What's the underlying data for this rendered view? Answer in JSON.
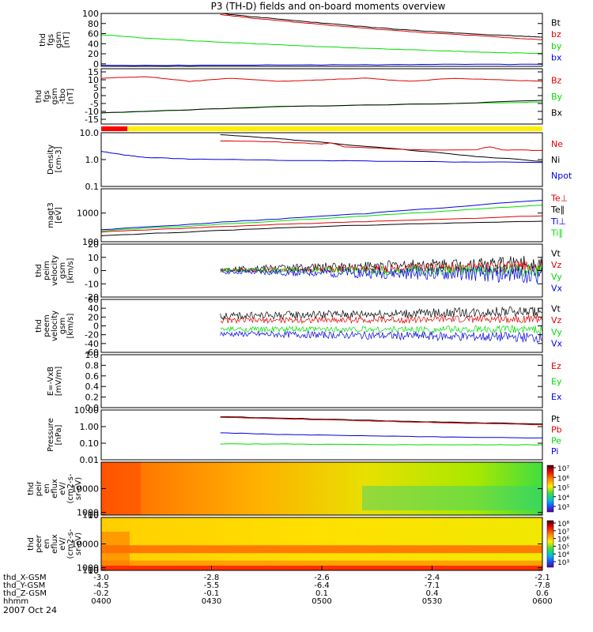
{
  "title": "P3 (TH-D) fields and on-board moments overview",
  "date_label": "2007 Oct 24",
  "colors": {
    "black": "#000000",
    "red": "#e00000",
    "green": "#00dd00",
    "blue": "#0000e0",
    "bar_red": "#ff0000",
    "bar_yellow": "#ffee00"
  },
  "chart_data": [
    {
      "type": "line",
      "id": "fgs",
      "ylabel": [
        "thd",
        "fgs",
        "gsm",
        "[nT]"
      ],
      "ylim": [
        -5,
        100
      ],
      "yticks": [
        100,
        80,
        60,
        40,
        20,
        0
      ],
      "legend": [
        {
          "label": "Bt",
          "color": "black"
        },
        {
          "label": "bz",
          "color": "red"
        },
        {
          "label": "by",
          "color": "green"
        },
        {
          "label": "bx",
          "color": "blue"
        }
      ],
      "series": [
        {
          "name": "Bt",
          "color": "black",
          "x": [
            0.27,
            0.35,
            0.45,
            0.55,
            0.65,
            0.75,
            0.85,
            0.95,
            1.0
          ],
          "y": [
            100,
            93,
            85,
            77,
            70,
            64,
            59,
            55,
            53
          ]
        },
        {
          "name": "bz",
          "color": "red",
          "x": [
            0.27,
            0.35,
            0.45,
            0.55,
            0.65,
            0.75,
            0.85,
            0.95,
            1.0
          ],
          "y": [
            98,
            90,
            82,
            74,
            67,
            61,
            56,
            50,
            48
          ]
        },
        {
          "name": "by",
          "color": "green",
          "x": [
            0,
            0.1,
            0.2,
            0.3,
            0.4,
            0.5,
            0.6,
            0.7,
            0.8,
            0.9,
            1.0
          ],
          "y": [
            58,
            51,
            46,
            42,
            38,
            34,
            31,
            28,
            25,
            22,
            21
          ]
        },
        {
          "name": "bx",
          "color": "blue",
          "x": [
            0,
            0.2,
            0.4,
            0.6,
            0.8,
            1.0
          ],
          "y": [
            -3,
            -3,
            -2,
            -2,
            -1,
            -1
          ]
        }
      ]
    },
    {
      "type": "line",
      "id": "fgs_dsl",
      "ylabel": [
        "thd",
        "fgs",
        "gsm",
        "-tbo",
        "[nT]"
      ],
      "ylim": [
        -18,
        17
      ],
      "yticks": [
        15,
        10,
        5,
        0,
        -5,
        -10,
        -15
      ],
      "legend": [
        {
          "label": "Bz",
          "color": "red"
        },
        {
          "label": "By",
          "color": "green"
        },
        {
          "label": "Bx",
          "color": "black"
        }
      ],
      "series": [
        {
          "name": "Bz",
          "color": "red",
          "x": [
            0,
            0.1,
            0.2,
            0.3,
            0.4,
            0.5,
            0.6,
            0.7,
            0.8,
            0.9,
            1.0
          ],
          "y": [
            11,
            12,
            9,
            11,
            9,
            10,
            11,
            9,
            11,
            10,
            9
          ]
        },
        {
          "name": "By",
          "color": "green",
          "x": [
            0,
            0.2,
            0.4,
            0.6,
            0.8,
            1.0
          ],
          "y": [
            -11,
            -9,
            -7,
            -6,
            -5,
            -4
          ]
        },
        {
          "name": "Bx",
          "color": "black",
          "x": [
            0,
            0.2,
            0.4,
            0.6,
            0.8,
            1.0
          ],
          "y": [
            -11,
            -9,
            -7,
            -6,
            -5,
            -3
          ]
        }
      ]
    },
    {
      "type": "line",
      "id": "density",
      "log": true,
      "ylabel": [
        "Density",
        "[cm-3]"
      ],
      "ylim": [
        0.1,
        10
      ],
      "yticks": [
        {
          "v": 10,
          "label": "10.0"
        },
        {
          "v": 1,
          "label": "1.0"
        },
        {
          "v": 0.1,
          "label": "0.1"
        }
      ],
      "legend": [
        {
          "label": "Ne",
          "color": "red"
        },
        {
          "label": "Ni",
          "color": "black"
        },
        {
          "label": "Npot",
          "color": "blue"
        }
      ],
      "series": [
        {
          "name": "Ni",
          "color": "black",
          "x": [
            0.27,
            0.4,
            0.55,
            0.7,
            0.85,
            1.0
          ],
          "y": [
            8.5,
            6,
            3.6,
            2.2,
            1.3,
            0.85
          ]
        },
        {
          "name": "Ne",
          "color": "red",
          "x": [
            0.27,
            0.4,
            0.5,
            0.52,
            0.55,
            0.7,
            0.85,
            0.88,
            0.91,
            1.0
          ],
          "y": [
            5,
            4.5,
            3.8,
            4.2,
            3,
            2.3,
            2.3,
            3,
            2.3,
            2.2
          ]
        },
        {
          "name": "Npot",
          "color": "blue",
          "x": [
            0,
            0.05,
            0.1,
            0.2,
            0.4,
            0.6,
            0.8,
            1.0
          ],
          "y": [
            2.0,
            1.5,
            1.2,
            1.05,
            0.95,
            0.88,
            0.82,
            0.78
          ]
        }
      ]
    },
    {
      "type": "line",
      "id": "temp",
      "log": true,
      "ylabel": [
        "magt3",
        "[eV]"
      ],
      "ylim": [
        100,
        7000
      ],
      "yticks": [
        {
          "v": 1000,
          "label": "1000"
        },
        {
          "v": 100,
          "label": "100"
        }
      ],
      "legend": [
        {
          "label": "Te⊥",
          "color": "red"
        },
        {
          "label": "Te∥",
          "color": "black"
        },
        {
          "label": "Ti⊥",
          "color": "blue"
        },
        {
          "label": "Ti∥",
          "color": "green"
        }
      ],
      "series": [
        {
          "name": "Ti⊥",
          "color": "blue",
          "x": [
            0,
            0.2,
            0.4,
            0.6,
            0.8,
            1.0
          ],
          "y": [
            260,
            400,
            620,
            950,
            1600,
            2800
          ]
        },
        {
          "name": "Ti∥",
          "color": "green",
          "x": [
            0,
            0.2,
            0.4,
            0.6,
            0.8,
            1.0
          ],
          "y": [
            240,
            350,
            520,
            780,
            1200,
            1900
          ]
        },
        {
          "name": "Te⊥",
          "color": "red",
          "x": [
            0,
            0.2,
            0.4,
            0.6,
            0.8,
            1.0
          ],
          "y": [
            220,
            300,
            400,
            500,
            620,
            800
          ]
        },
        {
          "name": "Te∥",
          "color": "black",
          "x": [
            0,
            0.2,
            0.4,
            0.6,
            0.8,
            1.0
          ],
          "y": [
            160,
            220,
            300,
            380,
            450,
            520
          ]
        }
      ]
    },
    {
      "type": "noise",
      "id": "peim",
      "ylabel": [
        "thd",
        "peim",
        "velocity",
        "gsm",
        "[km/s]"
      ],
      "ylim": [
        -20,
        20
      ],
      "yticks": [
        20,
        10,
        0,
        -10,
        -20
      ],
      "x_start": 0.27,
      "legend": [
        {
          "label": "Vt",
          "color": "black"
        },
        {
          "label": "Vz",
          "color": "red"
        },
        {
          "label": "Vy",
          "color": "green"
        },
        {
          "label": "Vx",
          "color": "blue"
        }
      ],
      "series": [
        {
          "name": "Vt",
          "color": "black",
          "center": [
            1,
            6
          ],
          "amp": [
            2,
            6
          ]
        },
        {
          "name": "Vz",
          "color": "red",
          "center": [
            0,
            3
          ],
          "amp": [
            1.5,
            5
          ]
        },
        {
          "name": "Vy",
          "color": "green",
          "center": [
            0,
            0
          ],
          "amp": [
            1.5,
            5
          ]
        },
        {
          "name": "Vx",
          "color": "blue",
          "center": [
            -1,
            -3
          ],
          "amp": [
            1.5,
            7
          ]
        }
      ]
    },
    {
      "type": "noise",
      "id": "peem",
      "ylabel": [
        "thd",
        "peem",
        "velocity",
        "gsm",
        "[km/s]"
      ],
      "ylim": [
        -60,
        60
      ],
      "yticks": [
        60,
        40,
        20,
        0,
        -20,
        -40,
        -60
      ],
      "x_start": 0.27,
      "legend": [
        {
          "label": "Vt",
          "color": "black"
        },
        {
          "label": "Vz",
          "color": "red"
        },
        {
          "label": "Vy",
          "color": "green"
        },
        {
          "label": "Vx",
          "color": "blue"
        }
      ],
      "series": [
        {
          "name": "Vt",
          "color": "black",
          "center": [
            22,
            33
          ],
          "amp": [
            8,
            12
          ]
        },
        {
          "name": "Vz",
          "color": "red",
          "center": [
            12,
            16
          ],
          "amp": [
            6,
            9
          ]
        },
        {
          "name": "Vy",
          "color": "green",
          "center": [
            -8,
            -8
          ],
          "amp": [
            6,
            9
          ]
        },
        {
          "name": "Vx",
          "color": "blue",
          "center": [
            -18,
            -26
          ],
          "amp": [
            6,
            12
          ]
        }
      ]
    },
    {
      "type": "empty",
      "id": "efield",
      "ylabel": [
        "E=-VxB",
        "[mV/m]"
      ],
      "ylim": [
        0,
        1
      ],
      "yticks": [
        {
          "v": 1,
          "label": "1.0"
        },
        {
          "v": 0.8,
          "label": "0.8"
        },
        {
          "v": 0.6,
          "label": "0.6"
        },
        {
          "v": 0.4,
          "label": "0.4"
        },
        {
          "v": 0.2,
          "label": "0.2"
        },
        {
          "v": 0,
          "label": "0.0"
        }
      ],
      "legend": [
        {
          "label": "Ez",
          "color": "red"
        },
        {
          "label": "Ey",
          "color": "green"
        },
        {
          "label": "Ex",
          "color": "blue"
        }
      ]
    },
    {
      "type": "line",
      "id": "pressure",
      "log": true,
      "ylabel": [
        "Pressure",
        "[nPa]"
      ],
      "ylim": [
        0.01,
        10
      ],
      "yticks": [
        {
          "v": 10,
          "label": "10.00"
        },
        {
          "v": 1,
          "label": "1.00"
        },
        {
          "v": 0.1,
          "label": "0.10"
        },
        {
          "v": 0.01,
          "label": "0.01"
        }
      ],
      "legend": [
        {
          "label": "Pt",
          "color": "black"
        },
        {
          "label": "Pb",
          "color": "red"
        },
        {
          "label": "Pe",
          "color": "green"
        },
        {
          "label": "Pi",
          "color": "blue"
        }
      ],
      "series": [
        {
          "name": "Pt",
          "color": "black",
          "x": [
            0.27,
            0.4,
            0.55,
            0.7,
            0.85,
            1.0
          ],
          "y": [
            4.0,
            3.3,
            2.6,
            2.1,
            1.7,
            1.45
          ]
        },
        {
          "name": "Pb",
          "color": "red",
          "x": [
            0.27,
            0.4,
            0.55,
            0.7,
            0.85,
            1.0
          ],
          "y": [
            3.6,
            3.0,
            2.4,
            1.9,
            1.55,
            1.3
          ]
        },
        {
          "name": "Pi",
          "color": "blue",
          "x": [
            0.27,
            0.4,
            0.55,
            0.7,
            0.85,
            1.0
          ],
          "y": [
            0.42,
            0.34,
            0.29,
            0.25,
            0.22,
            0.21
          ]
        },
        {
          "name": "Pe",
          "color": "green",
          "x": [
            0.27,
            0.4,
            0.55,
            0.7,
            0.85,
            1.0
          ],
          "y": [
            0.09,
            0.09,
            0.085,
            0.08,
            0.08,
            0.08
          ]
        }
      ]
    },
    {
      "type": "heatmap",
      "id": "peir",
      "ylabel": [
        "thd",
        "peir",
        "en",
        "eflux",
        "eV/",
        "(cm2-s-",
        "sr-eV)"
      ],
      "ylim": [
        10,
        20000
      ],
      "yticks": [
        {
          "v": 10000,
          "label": "10000"
        },
        {
          "v": 1000,
          "label": "1000"
        },
        {
          "v": 100,
          "label": "100"
        },
        {
          "v": 10,
          "label": "10"
        }
      ],
      "colorbar_labels": [
        "10⁷",
        "10⁶",
        "10⁵",
        "10⁴",
        "10³"
      ]
    },
    {
      "type": "heatmap",
      "id": "peer",
      "ylabel": [
        "thd",
        "peer",
        "en",
        "eflux",
        "eV/",
        "(cm2-s-",
        "sr-eV)"
      ],
      "ylim": [
        7,
        20000
      ],
      "yticks": [
        {
          "v": 10000,
          "label": "10000"
        },
        {
          "v": 1000,
          "label": "1000"
        },
        {
          "v": 100,
          "label": "100"
        },
        {
          "v": 10,
          "label": "10"
        }
      ],
      "colorbar_labels": [
        "10⁸",
        "10⁷",
        "10⁶",
        "10⁵",
        "10⁴",
        "10³"
      ]
    }
  ],
  "x_axis": {
    "rows": [
      {
        "label": "thd_X-GSM",
        "values": [
          "-3.0",
          "-2.8",
          "-2.6",
          "-2.4",
          "-2.1"
        ]
      },
      {
        "label": "thd_Y-GSM",
        "values": [
          "-4.5",
          "-5.5",
          "-6.4",
          "-7.1",
          "-7.8"
        ]
      },
      {
        "label": "thd_Z-GSM",
        "values": [
          "-0.2",
          "-0.1",
          "0.1",
          "0.4",
          "0.6"
        ]
      },
      {
        "label": "hhmm",
        "values": [
          "0400",
          "0430",
          "0500",
          "0530",
          "0600"
        ]
      }
    ]
  }
}
